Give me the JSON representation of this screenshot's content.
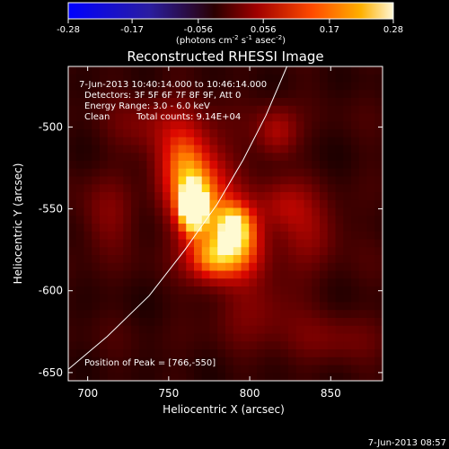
{
  "chart_data": {
    "type": "heatmap",
    "title": "Reconstructed RHESSI Image",
    "xlabel": "Heliocentric X (arcsec)",
    "ylabel": "Heliocentric Y (arcsec)",
    "xlim": [
      688,
      882
    ],
    "ylim": [
      -655,
      -463
    ],
    "x_ticks": [
      700,
      750,
      800,
      850
    ],
    "y_ticks": [
      -500,
      -550,
      -600,
      -650
    ],
    "grid": false,
    "colorbar": {
      "ticks": [
        {
          "value": -0.28,
          "label": "-0.28"
        },
        {
          "value": -0.17,
          "label": "-0.17"
        },
        {
          "value": -0.056,
          "label": "-0.056"
        },
        {
          "value": 0.056,
          "label": "0.056"
        },
        {
          "value": 0.17,
          "label": "0.17"
        },
        {
          "value": 0.28,
          "label": "0.28"
        }
      ],
      "range": [
        -0.28,
        0.28
      ],
      "colors": [
        "#0000ff",
        "#3b1a7a",
        "#110000",
        "#a00000",
        "#ff5a00",
        "#ffb000",
        "#fff7d6"
      ],
      "unit_label_prefix": "(photons cm",
      "unit_label_exp1": "-2",
      "unit_label_mid": " s",
      "unit_label_exp2": "-1",
      "unit_label_mid2": " asec",
      "unit_label_exp3": "-2",
      "unit_label_suffix": ")"
    },
    "annotations": {
      "time_range": "7-Jun-2013 10:40:14.000 to 10:46:14.000",
      "detectors": "Detectors: 3F 5F 6F 7F 8F 9F, Att 0",
      "energy_range": "Energy Range: 3.0 - 6.0 keV",
      "method": "Clean",
      "total_counts": "Total counts: 9.14E+04",
      "peak": "Position of Peak = [766,-550]"
    },
    "timestamp": "7-Jun-2013 08:57",
    "intensity_sources": [
      {
        "x": 765,
        "y": -550,
        "strength": 0.28,
        "sigma_x": 6,
        "sigma_y": 10
      },
      {
        "x": 770,
        "y": -540,
        "strength": 0.16,
        "sigma_x": 14,
        "sigma_y": 22
      },
      {
        "x": 758,
        "y": -522,
        "strength": 0.1,
        "sigma_x": 10,
        "sigma_y": 16
      },
      {
        "x": 790,
        "y": -560,
        "strength": 0.2,
        "sigma_x": 9,
        "sigma_y": 10
      },
      {
        "x": 778,
        "y": -580,
        "strength": 0.18,
        "sigma_x": 11,
        "sigma_y": 10
      },
      {
        "x": 796,
        "y": -575,
        "strength": 0.11,
        "sigma_x": 10,
        "sigma_y": 13
      },
      {
        "x": 817,
        "y": -503,
        "strength": 0.08,
        "sigma_x": 9,
        "sigma_y": 11
      },
      {
        "x": 820,
        "y": -548,
        "strength": 0.07,
        "sigma_x": 12,
        "sigma_y": 11
      },
      {
        "x": 836,
        "y": -565,
        "strength": 0.06,
        "sigma_x": 14,
        "sigma_y": 14
      },
      {
        "x": 742,
        "y": -500,
        "strength": 0.05,
        "sigma_x": 18,
        "sigma_y": 14
      },
      {
        "x": 712,
        "y": -555,
        "strength": 0.045,
        "sigma_x": 12,
        "sigma_y": 16
      },
      {
        "x": 805,
        "y": -610,
        "strength": 0.05,
        "sigma_x": 18,
        "sigma_y": 14
      },
      {
        "x": 850,
        "y": -630,
        "strength": 0.035,
        "sigma_x": 22,
        "sigma_y": 12
      }
    ],
    "limb": [
      {
        "x": 688,
        "y": -648
      },
      {
        "x": 712,
        "y": -628
      },
      {
        "x": 738,
        "y": -603
      },
      {
        "x": 760,
        "y": -575
      },
      {
        "x": 780,
        "y": -547
      },
      {
        "x": 796,
        "y": -520
      },
      {
        "x": 810,
        "y": -493
      },
      {
        "x": 823,
        "y": -463
      }
    ]
  }
}
